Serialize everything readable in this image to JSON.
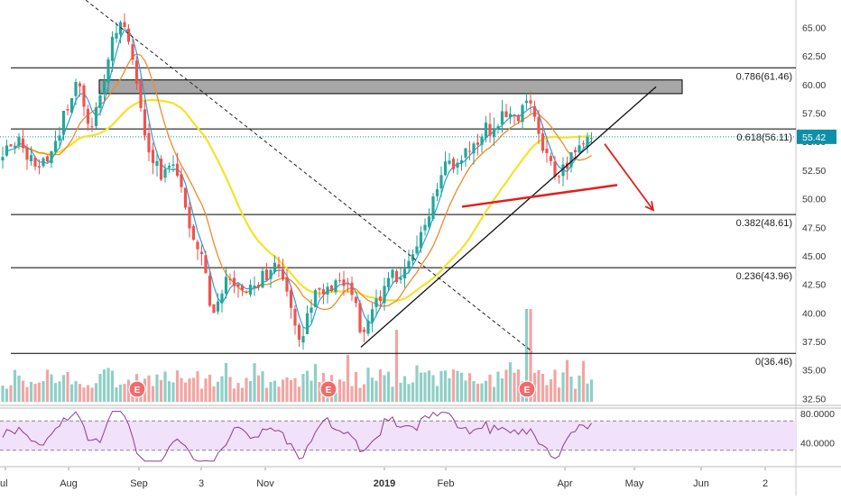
{
  "chart_data": {
    "type": "candlestick",
    "price_axis": {
      "ticks": [
        "65.00",
        "62.50",
        "60.00",
        "57.50",
        "55.00",
        "52.50",
        "50.00",
        "47.50",
        "45.00",
        "42.50",
        "40.00",
        "37.50",
        "35.00",
        "32.50"
      ],
      "range": [
        31.9,
        67.4
      ]
    },
    "last_price": {
      "label": "55.42",
      "value": 55.42,
      "color": "#0e8fa8"
    },
    "time_axis": {
      "labels": [
        "ul",
        "Aug",
        "Sep",
        "3",
        "Nov",
        "2019",
        "Feb",
        "Apr",
        "May",
        "Jun",
        "2"
      ],
      "bold_labels": [
        "2019"
      ]
    },
    "fibonacci_levels": [
      {
        "label": "0.786(61.46)",
        "value": 61.46
      },
      {
        "label": "0.618(56.11)",
        "value": 56.11
      },
      {
        "label": "0.382(48.61)",
        "value": 48.61
      },
      {
        "label": "0.236(43.96)",
        "value": 43.96
      },
      {
        "label": "0(36.46)",
        "value": 36.46
      }
    ],
    "resistance_zone": {
      "low": 59.2,
      "high": 60.4,
      "color": "#a7a7a7"
    },
    "earnings_markers": [
      "E",
      "E",
      "E"
    ],
    "rsi_panel": {
      "ticks": [
        "80.0000",
        "40.0000"
      ],
      "range": [
        10,
        85
      ],
      "band": [
        30,
        70
      ]
    },
    "colors": {
      "up": "#26a69a",
      "down": "#ef5350",
      "volume_up": "#8fcfc6",
      "volume_down": "#f2a5a3",
      "ma_fast": "#2e9fd8",
      "ma_mid": "#ee8b2a",
      "ma_slow": "#f5e22a",
      "support_red": "#e02020",
      "arrow": "#e02020",
      "rsi_line": "#8c3d8c",
      "rsi_band": "#f1e1fb"
    }
  }
}
